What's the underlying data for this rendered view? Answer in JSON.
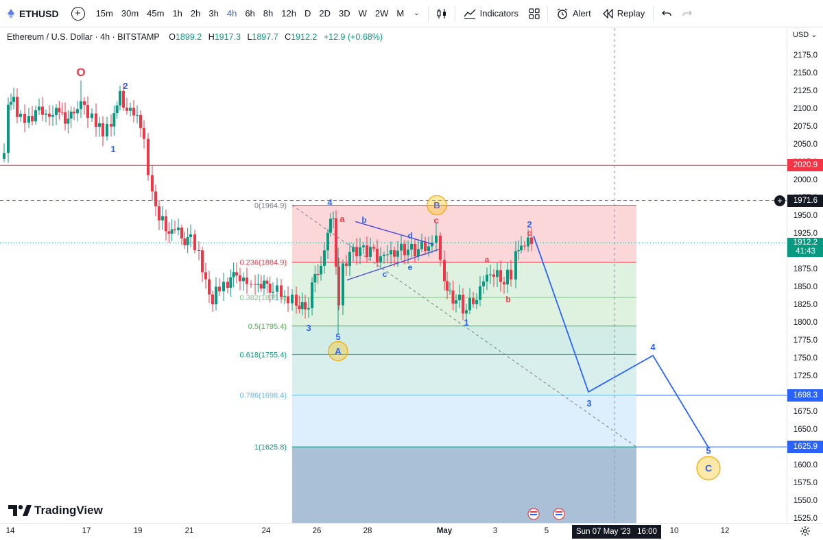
{
  "toolbar": {
    "symbol": "ETHUSD",
    "intervals": [
      "15m",
      "30m",
      "45m",
      "1h",
      "2h",
      "3h",
      "4h",
      "6h",
      "8h",
      "12h",
      "D",
      "2D",
      "3D",
      "W",
      "2W",
      "M"
    ],
    "active_interval": "4h",
    "indicators_label": "Indicators",
    "alert_label": "Alert",
    "replay_label": "Replay"
  },
  "legend": {
    "title": "Ethereum / U.S. Dollar · 4h · BITSTAMP",
    "open_label": "O",
    "open": "1899.2",
    "high_label": "H",
    "high": "1917.3",
    "low_label": "L",
    "low": "1897.7",
    "close_label": "C",
    "close": "1912.2",
    "change": "+12.9 (+0.68%)"
  },
  "price_scale": {
    "currency": "USD",
    "ticks": [
      "2175.0",
      "2150.0",
      "2125.0",
      "2100.0",
      "2075.0",
      "2050.0",
      "2025.0",
      "2000.0",
      "1975.0",
      "1950.0",
      "1925.0",
      "1900.0",
      "1875.0",
      "1850.0",
      "1825.0",
      "1800.0",
      "1775.0",
      "1750.0",
      "1725.0",
      "1700.0",
      "1675.0",
      "1650.0",
      "1625.0",
      "1600.0",
      "1575.0",
      "1550.0",
      "1525.0"
    ],
    "badges": [
      {
        "label": "2020.9",
        "color": "#f23645"
      },
      {
        "label": "1971.6",
        "color": "#131722"
      },
      {
        "label": "1912.2",
        "sub": "41:43",
        "color": "#089981"
      },
      {
        "label": "1698.3",
        "color": "#2962ff"
      },
      {
        "label": "1625.9",
        "color": "#2962ff"
      }
    ]
  },
  "time_scale": {
    "labels": [
      "14",
      "17",
      "19",
      "21",
      "24",
      "26",
      "28",
      "May",
      "3",
      "5",
      "10",
      "12"
    ],
    "crosshair_time": "Sun 07 May '23   16:00"
  },
  "chart_data": {
    "type": "candlestick",
    "symbol": "ETHUSD",
    "interval": "4h",
    "ylim": [
      1515,
      2195
    ],
    "horizontal_lines": [
      {
        "price": 2020.9,
        "color": "#f23645"
      },
      {
        "price": 1971.6,
        "color": "#787b86",
        "dashed": true
      },
      {
        "price": 1912.2,
        "color": "#089981",
        "dotted": true
      },
      {
        "price": 1698.3,
        "color": "#2962ff"
      },
      {
        "price": 1625.9,
        "color": "#2962ff"
      }
    ],
    "fibonacci": [
      {
        "label": "0(1964.9)",
        "level": 0,
        "price": 1964.9
      },
      {
        "label": "0.236(1884.9)",
        "level": 0.236,
        "price": 1884.9
      },
      {
        "label": "0.382(1835.4)",
        "level": 0.382,
        "price": 1835.4
      },
      {
        "label": "0.5(1795.4)",
        "level": 0.5,
        "price": 1795.4
      },
      {
        "label": "0.618(1755.4)",
        "level": 0.618,
        "price": 1755.4
      },
      {
        "label": "0.786(1698.4)",
        "level": 0.786,
        "price": 1698.4
      },
      {
        "label": "1(1625.8)",
        "level": 1,
        "price": 1625.8
      }
    ],
    "wave_labels": [
      "O",
      "1",
      "2",
      "3",
      "4",
      "5",
      "A",
      "a",
      "b",
      "c",
      "d",
      "e",
      "B",
      "c",
      "1",
      "a",
      "b",
      "2",
      "c",
      "3",
      "4",
      "5",
      "C"
    ],
    "projection_prices": [
      1922,
      1703,
      1754,
      1625
    ]
  },
  "branding": {
    "logo_text": "TradingView"
  }
}
